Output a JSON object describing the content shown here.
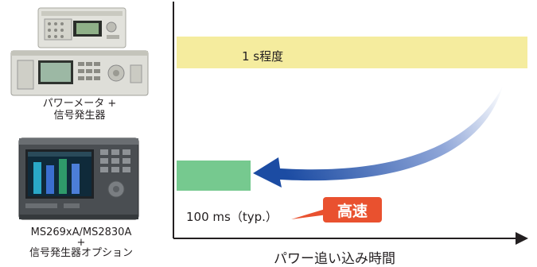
{
  "chart_data": {
    "type": "bar",
    "orientation": "horizontal",
    "categories": [
      "パワーメータ + 信号発生器",
      "MS269xA/MS2830A + 信号発生器オプション"
    ],
    "values_seconds": [
      1.0,
      0.1
    ],
    "value_labels": [
      "1 s程度",
      "100 ms（typ.）"
    ],
    "xlabel": "パワー追い込み時間",
    "ylabel": "",
    "annotation": "高速",
    "colors": {
      "bar_slow": "#f5ec9e",
      "bar_fast": "#76c98f",
      "arrow": "#1f4fa6",
      "badge": "#e9512f",
      "axis": "#231f20"
    },
    "grid": false,
    "legend": "none"
  },
  "devices": [
    {
      "caption_line1": "パワーメータ +",
      "caption_line2": "信号発生器",
      "icon": "power-meter-and-signal-generator-icon"
    },
    {
      "caption_line1": "MS269xA/MS2830A",
      "caption_line2": "+",
      "caption_line3": "信号発生器オプション",
      "icon": "signal-analyzer-icon"
    }
  ]
}
